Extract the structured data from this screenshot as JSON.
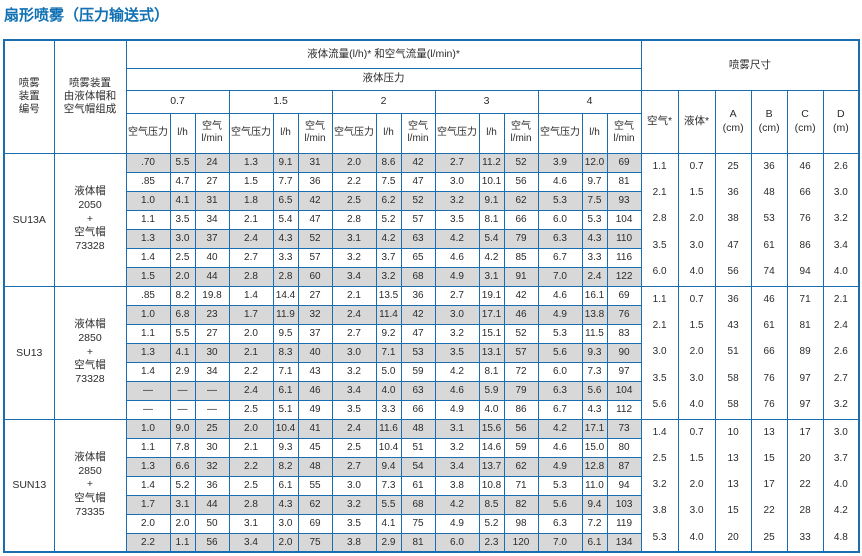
{
  "title": "扇形喷雾（压力输送式）",
  "table": {
    "headers": {
      "device_no": "喷雾\n装置\n编号",
      "device_composition": "喷雾装置\n由液体帽和\n空气帽组成",
      "flow_header": "液体流量(l/h)* 和空气流量(l/min)*",
      "pressure_header": "液体压力",
      "pressures": [
        "0.7",
        "1.5",
        "2",
        "3",
        "4"
      ],
      "sub_columns": [
        "空气压力",
        "l/h",
        "空气\nl/min"
      ],
      "spray_size": "喷雾尺寸",
      "spray_columns": [
        "空气*",
        "液体*",
        "A\n(cm)",
        "B\n(cm)",
        "C\n(cm)",
        "D\n(m)"
      ]
    },
    "blocks": [
      {
        "device": "SU13A",
        "composition": "液体帽\n2050\n+\n空气帽\n73328",
        "rows": [
          [
            ".70",
            "5.5",
            "24",
            "1.3",
            "9.1",
            "31",
            "2.0",
            "8.6",
            "42",
            "2.7",
            "11.2",
            "52",
            "3.9",
            "12.0",
            "69"
          ],
          [
            ".85",
            "4.7",
            "27",
            "1.5",
            "7.7",
            "36",
            "2.2",
            "7.5",
            "47",
            "3.0",
            "10.1",
            "56",
            "4.6",
            "9.7",
            "81"
          ],
          [
            "1.0",
            "4.1",
            "31",
            "1.8",
            "6.5",
            "42",
            "2.5",
            "6.2",
            "52",
            "3.2",
            "9.1",
            "62",
            "5.3",
            "7.5",
            "93"
          ],
          [
            "1.1",
            "3.5",
            "34",
            "2.1",
            "5.4",
            "47",
            "2.8",
            "5.2",
            "57",
            "3.5",
            "8.1",
            "66",
            "6.0",
            "5.3",
            "104"
          ],
          [
            "1.3",
            "3.0",
            "37",
            "2.4",
            "4.3",
            "52",
            "3.1",
            "4.2",
            "63",
            "4.2",
            "5.4",
            "79",
            "6.3",
            "4.3",
            "110"
          ],
          [
            "1.4",
            "2.5",
            "40",
            "2.7",
            "3.3",
            "57",
            "3.2",
            "3.7",
            "65",
            "4.6",
            "4.2",
            "85",
            "6.7",
            "3.3",
            "116"
          ],
          [
            "1.5",
            "2.0",
            "44",
            "2.8",
            "2.8",
            "60",
            "3.4",
            "3.2",
            "68",
            "4.9",
            "3.1",
            "91",
            "7.0",
            "2.4",
            "122"
          ]
        ],
        "spray": [
          [
            "1.1",
            "0.7",
            "25",
            "36",
            "46",
            "2.6"
          ],
          [
            "2.1",
            "1.5",
            "36",
            "48",
            "66",
            "3.0"
          ],
          [
            "2.8",
            "2.0",
            "38",
            "53",
            "76",
            "3.2"
          ],
          [
            "3.5",
            "3.0",
            "47",
            "61",
            "86",
            "3.4"
          ],
          [
            "6.0",
            "4.0",
            "56",
            "74",
            "94",
            "4.0"
          ]
        ]
      },
      {
        "device": "SU13",
        "composition": "液体帽\n2850\n+\n空气帽\n73328",
        "rows": [
          [
            ".85",
            "8.2",
            "19.8",
            "1.4",
            "14.4",
            "27",
            "2.1",
            "13.5",
            "36",
            "2.7",
            "19.1",
            "42",
            "4.6",
            "16.1",
            "69"
          ],
          [
            "1.0",
            "6.8",
            "23",
            "1.7",
            "11.9",
            "32",
            "2.4",
            "11.4",
            "42",
            "3.0",
            "17.1",
            "46",
            "4.9",
            "13.8",
            "76"
          ],
          [
            "1.1",
            "5.5",
            "27",
            "2.0",
            "9.5",
            "37",
            "2.7",
            "9.2",
            "47",
            "3.2",
            "15.1",
            "52",
            "5.3",
            "11.5",
            "83"
          ],
          [
            "1.3",
            "4.1",
            "30",
            "2.1",
            "8.3",
            "40",
            "3.0",
            "7.1",
            "53",
            "3.5",
            "13.1",
            "57",
            "5.6",
            "9.3",
            "90"
          ],
          [
            "1.4",
            "2.9",
            "34",
            "2.2",
            "7.1",
            "43",
            "3.2",
            "5.0",
            "59",
            "4.2",
            "8.1",
            "72",
            "6.0",
            "7.3",
            "97"
          ],
          [
            "—",
            "—",
            "—",
            "2.4",
            "6.1",
            "46",
            "3.4",
            "4.0",
            "63",
            "4.6",
            "5.9",
            "79",
            "6.3",
            "5.6",
            "104"
          ],
          [
            "—",
            "—",
            "—",
            "2.5",
            "5.1",
            "49",
            "3.5",
            "3.3",
            "66",
            "4.9",
            "4.0",
            "86",
            "6.7",
            "4.3",
            "112"
          ]
        ],
        "spray": [
          [
            "1.1",
            "0.7",
            "36",
            "46",
            "71",
            "2.1"
          ],
          [
            "2.1",
            "1.5",
            "43",
            "61",
            "81",
            "2.4"
          ],
          [
            "3.0",
            "2.0",
            "51",
            "66",
            "89",
            "2.6"
          ],
          [
            "3.5",
            "3.0",
            "58",
            "76",
            "97",
            "2.7"
          ],
          [
            "5.6",
            "4.0",
            "58",
            "76",
            "97",
            "3.2"
          ]
        ]
      },
      {
        "device": "SUN13",
        "composition": "液体帽\n2850\n+\n空气帽\n73335",
        "rows": [
          [
            "1.0",
            "9.0",
            "25",
            "2.0",
            "10.4",
            "41",
            "2.4",
            "11.6",
            "48",
            "3.1",
            "15.6",
            "56",
            "4.2",
            "17.1",
            "73"
          ],
          [
            "1.1",
            "7.8",
            "30",
            "2.1",
            "9.3",
            "45",
            "2.5",
            "10.4",
            "51",
            "3.2",
            "14.6",
            "59",
            "4.6",
            "15.0",
            "80"
          ],
          [
            "1.3",
            "6.6",
            "32",
            "2.2",
            "8.2",
            "48",
            "2.7",
            "9.4",
            "54",
            "3.4",
            "13.7",
            "62",
            "4.9",
            "12.8",
            "87"
          ],
          [
            "1.4",
            "5.2",
            "36",
            "2.5",
            "6.1",
            "55",
            "3.0",
            "7.3",
            "61",
            "3.8",
            "10.8",
            "71",
            "5.3",
            "11.0",
            "94"
          ],
          [
            "1.7",
            "3.1",
            "44",
            "2.8",
            "4.3",
            "62",
            "3.2",
            "5.5",
            "68",
            "4.2",
            "8.5",
            "82",
            "5.6",
            "9.4",
            "103"
          ],
          [
            "2.0",
            "2.0",
            "50",
            "3.1",
            "3.0",
            "69",
            "3.5",
            "4.1",
            "75",
            "4.9",
            "5.2",
            "98",
            "6.3",
            "7.2",
            "119"
          ],
          [
            "2.2",
            "1.1",
            "56",
            "3.4",
            "2.0",
            "75",
            "3.8",
            "2.9",
            "81",
            "6.0",
            "2.3",
            "120",
            "7.0",
            "6.1",
            "134"
          ]
        ],
        "spray": [
          [
            "1.4",
            "0.7",
            "10",
            "13",
            "17",
            "3.0"
          ],
          [
            "2.5",
            "1.5",
            "13",
            "15",
            "20",
            "3.7"
          ],
          [
            "3.2",
            "2.0",
            "13",
            "17",
            "22",
            "4.0"
          ],
          [
            "3.8",
            "3.0",
            "15",
            "22",
            "28",
            "4.2"
          ],
          [
            "5.3",
            "4.0",
            "20",
            "25",
            "33",
            "4.8"
          ]
        ]
      }
    ]
  }
}
